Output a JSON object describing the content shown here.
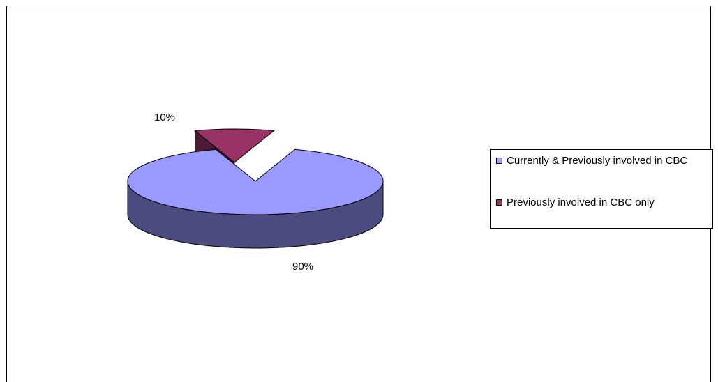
{
  "chart_data": {
    "type": "pie",
    "style": "3d-exploded",
    "categories": [
      "Currently & Previously involved in CBC",
      "Previously involved in CBC only"
    ],
    "values": [
      90,
      10
    ],
    "data_labels": [
      "90%",
      "10%"
    ],
    "legend_position": "right",
    "colors": [
      "#9999ff",
      "#993366"
    ],
    "side_colors": [
      "#4b4b80",
      "#4c1a33"
    ]
  }
}
